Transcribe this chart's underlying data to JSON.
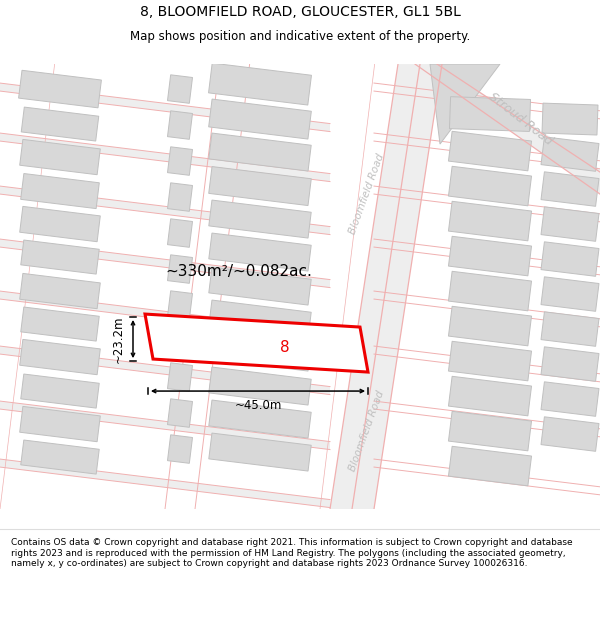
{
  "title": "8, BLOOMFIELD ROAD, GLOUCESTER, GL1 5BL",
  "subtitle": "Map shows position and indicative extent of the property.",
  "footer": "Contains OS data © Crown copyright and database right 2021. This information is subject to Crown copyright and database rights 2023 and is reproduced with the permission of HM Land Registry. The polygons (including the associated geometry, namely x, y co-ordinates) are subject to Crown copyright and database rights 2023 Ordnance Survey 100026316.",
  "area_label": "~330m²/~0.082ac.",
  "width_label": "~45.0m",
  "height_label": "~23.2m",
  "property_number": "8",
  "map_bg": "#f7f3f3",
  "road_color": "#f0b0b0",
  "building_fill": "#d8d8d8",
  "building_outline": "#c0c0c0",
  "property_outline": "#ee0000",
  "road_label_color": "#c0c0c0",
  "title_color": "#000000",
  "footer_color": "#000000",
  "annotation_color": "#000000",
  "title_fontsize": 10,
  "subtitle_fontsize": 8.5,
  "footer_fontsize": 6.5
}
